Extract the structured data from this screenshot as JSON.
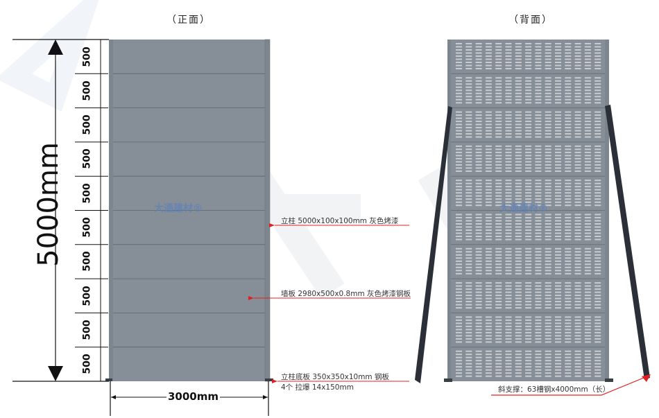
{
  "titles": {
    "front": "（正面）",
    "back": "（背面）"
  },
  "dimensions": {
    "height": "5000mm",
    "width": "3000mm",
    "segments": [
      "500",
      "500",
      "500",
      "500",
      "500",
      "500",
      "500",
      "500",
      "500",
      "500"
    ]
  },
  "annotations": {
    "post": "立柱 5000x100x100mm 灰色烤漆",
    "panel": "墙板 2980x500x0.8mm 灰色烤漆钢板",
    "base_plate": "立柱底板 350x350x10mm 钢板",
    "anchor": "4个 拉爆 14x150mm",
    "brace": "斜支撑：63槽钢x4000mm（长）"
  },
  "watermark": "大通建材®",
  "colors": {
    "panel": "#868e98",
    "post": "#7d858e",
    "brace": "#2b3038",
    "leader": "#e02020",
    "slot": "#c9ccd0"
  },
  "back_view": {
    "rows": 10,
    "slot_columns": 15
  }
}
